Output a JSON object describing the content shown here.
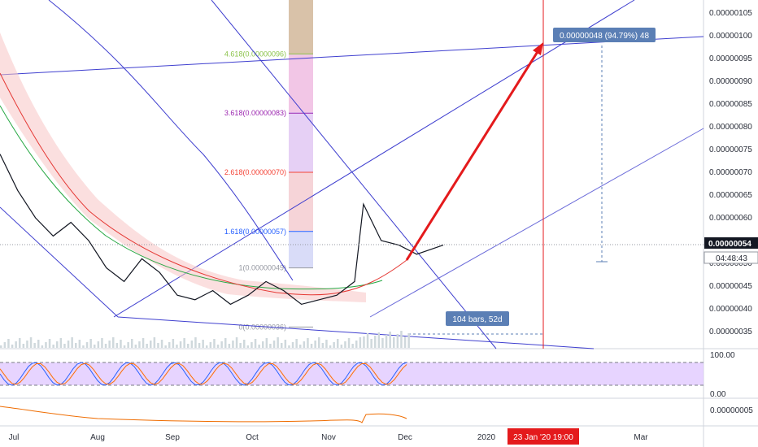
{
  "chart_data": {
    "type": "line",
    "title": "",
    "price_axis": {
      "ticks": [
        "0.00000105",
        "0.00000100",
        "0.00000095",
        "0.00000090",
        "0.00000085",
        "0.00000080",
        "0.00000075",
        "0.00000070",
        "0.00000065",
        "0.00000060",
        "0.00000055",
        "0.00000050",
        "0.00000045",
        "0.00000040",
        "0.00000035"
      ],
      "range": [
        3.2e-07,
        1.08e-06
      ],
      "current_price": "0.00000054",
      "countdown": "04:48:43"
    },
    "time_axis": {
      "labels": [
        "Jul",
        "Aug",
        "Sep",
        "Oct",
        "Nov",
        "Dec",
        "2020",
        "Mar"
      ],
      "highlight": "23 Jan '20   19:00"
    },
    "fibonacci": [
      {
        "label": "4.618(0.00000096)",
        "value": 9.6e-07,
        "color": "#8bc34a"
      },
      {
        "label": "3.618(0.00000083)",
        "value": 8.3e-07,
        "color": "#9c27b0"
      },
      {
        "label": "2.618(0.00000070)",
        "value": 7e-07,
        "color": "#f44336"
      },
      {
        "label": "1.618(0.00000057)",
        "value": 5.7e-07,
        "color": "#2962ff"
      },
      {
        "label": "1(0.00000049)",
        "value": 4.9e-07,
        "color": "#9598a1"
      },
      {
        "label": "0(0.00000036)",
        "value": 3.6e-07,
        "color": "#9598a1"
      }
    ],
    "annotations": {
      "target": "0.00000048 (94.79%) 48",
      "range": "104 bars, 52d"
    },
    "oscillator": {
      "ticks": [
        "100.00",
        "0.00"
      ]
    },
    "lower_pane": {
      "ticks": [
        "0.00000005"
      ]
    },
    "price_series": [
      {
        "x": 0,
        "y": 7.4e-07
      },
      {
        "x": 0.04,
        "y": 6.6e-07
      },
      {
        "x": 0.08,
        "y": 6e-07
      },
      {
        "x": 0.12,
        "y": 5.6e-07
      },
      {
        "x": 0.16,
        "y": 5.9e-07
      },
      {
        "x": 0.2,
        "y": 5.5e-07
      },
      {
        "x": 0.24,
        "y": 4.9e-07
      },
      {
        "x": 0.28,
        "y": 4.6e-07
      },
      {
        "x": 0.32,
        "y": 5.1e-07
      },
      {
        "x": 0.36,
        "y": 4.8e-07
      },
      {
        "x": 0.4,
        "y": 4.3e-07
      },
      {
        "x": 0.44,
        "y": 4.2e-07
      },
      {
        "x": 0.48,
        "y": 4.4e-07
      },
      {
        "x": 0.52,
        "y": 4.1e-07
      },
      {
        "x": 0.56,
        "y": 4.3e-07
      },
      {
        "x": 0.6,
        "y": 4.6e-07
      },
      {
        "x": 0.64,
        "y": 4.4e-07
      },
      {
        "x": 0.68,
        "y": 4.1e-07
      },
      {
        "x": 0.72,
        "y": 4.2e-07
      },
      {
        "x": 0.76,
        "y": 4.3e-07
      },
      {
        "x": 0.8,
        "y": 4.6e-07
      },
      {
        "x": 0.82,
        "y": 6.3e-07
      },
      {
        "x": 0.86,
        "y": 5.5e-07
      },
      {
        "x": 0.9,
        "y": 5.4e-07
      },
      {
        "x": 0.94,
        "y": 5.2e-07
      },
      {
        "x": 1,
        "y": 5.4e-07
      }
    ]
  }
}
